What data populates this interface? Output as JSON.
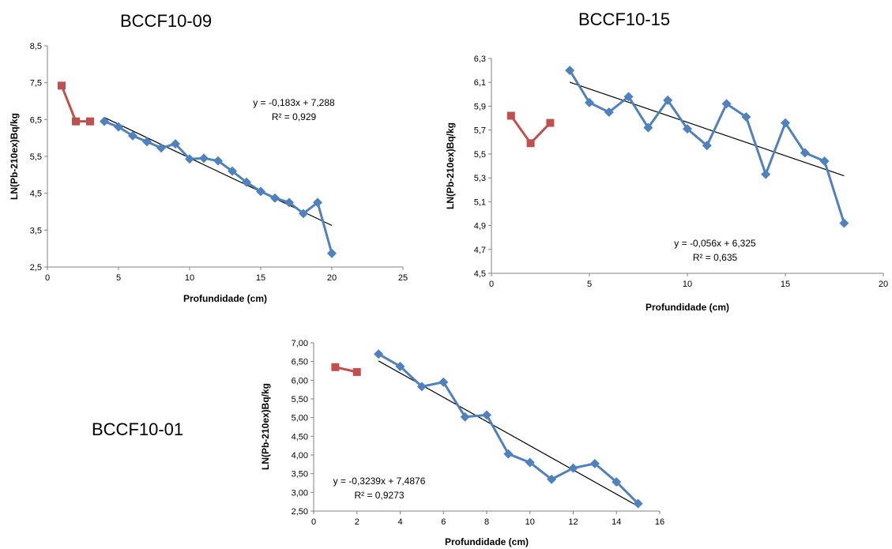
{
  "chart_data": [
    {
      "type": "line",
      "title": "BCCF10-09",
      "xlabel": "Profundidade (cm)",
      "ylabel": "LN(Pb-210ex)Bq/kg",
      "xlim": [
        0,
        25
      ],
      "ylim": [
        2.5,
        8.5
      ],
      "x_ticks": [
        "0",
        "5",
        "10",
        "15",
        "20",
        "25"
      ],
      "y_ticks": [
        "2,5",
        "3,5",
        "4,5",
        "5,5",
        "6,5",
        "7,5",
        "8,5"
      ],
      "series": [
        {
          "color": "#c0504d",
          "marker": "square",
          "x": [
            1,
            2,
            3
          ],
          "y": [
            7.42,
            6.45,
            6.45
          ]
        },
        {
          "color": "#4f81bd",
          "marker": "diamond",
          "x": [
            4,
            5,
            6,
            7,
            8,
            9,
            10,
            11,
            12,
            13,
            14,
            15,
            16,
            17,
            18,
            19,
            20
          ],
          "y": [
            6.45,
            6.3,
            6.06,
            5.9,
            5.73,
            5.84,
            5.43,
            5.45,
            5.38,
            5.1,
            4.8,
            4.55,
            4.37,
            4.25,
            3.95,
            4.25,
            2.87
          ]
        }
      ],
      "trendline": {
        "color": "#000000",
        "slope": -0.183,
        "intercept": 7.288,
        "x_range": [
          4,
          20
        ],
        "equation": "y = -0,183x + 7,288",
        "r2": "R² = 0,929"
      }
    },
    {
      "type": "line",
      "title": "BCCF10-15",
      "xlabel": "Profundidade (cm)",
      "ylabel": "LN(Pb-210ex)Bq/kg",
      "xlim": [
        0,
        20
      ],
      "ylim": [
        4.5,
        6.3
      ],
      "x_ticks": [
        "0",
        "5",
        "10",
        "15",
        "20"
      ],
      "y_ticks": [
        "4,5",
        "4,7",
        "4,9",
        "5,1",
        "5,3",
        "5,5",
        "5,7",
        "5,9",
        "6,1",
        "6,3"
      ],
      "series": [
        {
          "color": "#c0504d",
          "marker": "square",
          "x": [
            1,
            2,
            3
          ],
          "y": [
            5.82,
            5.59,
            5.76
          ]
        },
        {
          "color": "#4f81bd",
          "marker": "diamond",
          "x": [
            4,
            5,
            6,
            7,
            8,
            9,
            10,
            11,
            12,
            13,
            14,
            15,
            16,
            17,
            18
          ],
          "y": [
            6.2,
            5.93,
            5.85,
            5.98,
            5.72,
            5.95,
            5.71,
            5.57,
            5.92,
            5.81,
            5.33,
            5.76,
            5.51,
            5.44,
            4.92
          ]
        }
      ],
      "trendline": {
        "color": "#000000",
        "slope": -0.056,
        "intercept": 6.325,
        "x_range": [
          4,
          18
        ],
        "equation": "y = -0,056x + 6,325",
        "r2": "R² = 0,635"
      }
    },
    {
      "type": "line",
      "title": "BCCF10-01",
      "xlabel": "Profundidade (cm)",
      "ylabel": "LN(Pb-210ex)Bq/kg",
      "xlim": [
        0,
        16
      ],
      "ylim": [
        2.5,
        7.0
      ],
      "x_ticks": [
        "0",
        "2",
        "4",
        "6",
        "8",
        "10",
        "12",
        "14",
        "16"
      ],
      "y_ticks": [
        "2,50",
        "3,00",
        "3,50",
        "4,00",
        "4,50",
        "5,00",
        "5,50",
        "6,00",
        "6,50",
        "7,00"
      ],
      "series": [
        {
          "color": "#c0504d",
          "marker": "square",
          "x": [
            1,
            2
          ],
          "y": [
            6.35,
            6.22
          ]
        },
        {
          "color": "#4f81bd",
          "marker": "diamond",
          "x": [
            3,
            4,
            5,
            6,
            7,
            8,
            9,
            10,
            11,
            12,
            13,
            14,
            15
          ],
          "y": [
            6.7,
            6.37,
            5.83,
            5.95,
            5.02,
            5.07,
            4.03,
            3.8,
            3.35,
            3.65,
            3.77,
            3.28,
            2.7
          ]
        }
      ],
      "trendline": {
        "color": "#000000",
        "slope": -0.3239,
        "intercept": 7.4876,
        "x_range": [
          3,
          15
        ],
        "equation": "y = -0,3239x + 7,4876",
        "r2": "R² = 0,9273"
      }
    }
  ]
}
